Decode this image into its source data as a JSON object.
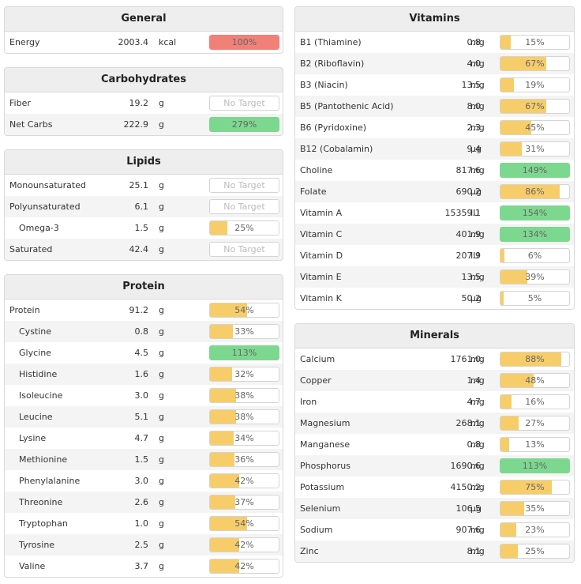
{
  "colors": {
    "full": "#7dd88f",
    "partial": "#f7cd6a",
    "over": "#f08078",
    "empty": "#ffffff"
  },
  "general": {
    "title": "General",
    "rows": [
      {
        "name": "Energy",
        "value": "2003.4",
        "unit": "kcal",
        "pct": "100%",
        "fill": 1.0,
        "status": "over"
      }
    ]
  },
  "carbs": {
    "title": "Carbohydrates",
    "rows": [
      {
        "name": "Fiber",
        "value": "19.2",
        "unit": "g",
        "pct": "No Target",
        "fill": 0,
        "status": "none"
      },
      {
        "name": "Net Carbs",
        "value": "222.9",
        "unit": "g",
        "pct": "279%",
        "fill": 1.0,
        "status": "full"
      }
    ]
  },
  "lipids": {
    "title": "Lipids",
    "rows": [
      {
        "name": "Monounsaturated",
        "value": "25.1",
        "unit": "g",
        "pct": "No Target",
        "fill": 0,
        "status": "none"
      },
      {
        "name": "Polyunsaturated",
        "value": "6.1",
        "unit": "g",
        "pct": "No Target",
        "fill": 0,
        "status": "none"
      },
      {
        "name": "Omega-3",
        "value": "1.5",
        "unit": "g",
        "pct": "25%",
        "fill": 0.25,
        "status": "partial",
        "indent": true
      },
      {
        "name": "Saturated",
        "value": "42.4",
        "unit": "g",
        "pct": "No Target",
        "fill": 0,
        "status": "none"
      }
    ]
  },
  "protein": {
    "title": "Protein",
    "rows": [
      {
        "name": "Protein",
        "value": "91.2",
        "unit": "g",
        "pct": "54%",
        "fill": 0.54,
        "status": "partial"
      },
      {
        "name": "Cystine",
        "value": "0.8",
        "unit": "g",
        "pct": "33%",
        "fill": 0.33,
        "status": "partial",
        "indent": true
      },
      {
        "name": "Glycine",
        "value": "4.5",
        "unit": "g",
        "pct": "113%",
        "fill": 1.0,
        "status": "full",
        "indent": true
      },
      {
        "name": "Histidine",
        "value": "1.6",
        "unit": "g",
        "pct": "32%",
        "fill": 0.32,
        "status": "partial",
        "indent": true
      },
      {
        "name": "Isoleucine",
        "value": "3.0",
        "unit": "g",
        "pct": "38%",
        "fill": 0.38,
        "status": "partial",
        "indent": true
      },
      {
        "name": "Leucine",
        "value": "5.1",
        "unit": "g",
        "pct": "38%",
        "fill": 0.38,
        "status": "partial",
        "indent": true
      },
      {
        "name": "Lysine",
        "value": "4.7",
        "unit": "g",
        "pct": "34%",
        "fill": 0.34,
        "status": "partial",
        "indent": true
      },
      {
        "name": "Methionine",
        "value": "1.5",
        "unit": "g",
        "pct": "36%",
        "fill": 0.36,
        "status": "partial",
        "indent": true
      },
      {
        "name": "Phenylalanine",
        "value": "3.0",
        "unit": "g",
        "pct": "42%",
        "fill": 0.42,
        "status": "partial",
        "indent": true
      },
      {
        "name": "Threonine",
        "value": "2.6",
        "unit": "g",
        "pct": "37%",
        "fill": 0.37,
        "status": "partial",
        "indent": true
      },
      {
        "name": "Tryptophan",
        "value": "1.0",
        "unit": "g",
        "pct": "54%",
        "fill": 0.54,
        "status": "partial",
        "indent": true
      },
      {
        "name": "Tyrosine",
        "value": "2.5",
        "unit": "g",
        "pct": "42%",
        "fill": 0.42,
        "status": "partial",
        "indent": true
      },
      {
        "name": "Valine",
        "value": "3.7",
        "unit": "g",
        "pct": "42%",
        "fill": 0.42,
        "status": "partial",
        "indent": true
      }
    ]
  },
  "vitamins": {
    "title": "Vitamins",
    "rows": [
      {
        "name": "B1 (Thiamine)",
        "value": "0.8",
        "unit": "mg",
        "pct": "15%",
        "fill": 0.15,
        "status": "partial"
      },
      {
        "name": "B2 (Riboflavin)",
        "value": "4.0",
        "unit": "mg",
        "pct": "67%",
        "fill": 0.67,
        "status": "partial"
      },
      {
        "name": "B3 (Niacin)",
        "value": "13.5",
        "unit": "mg",
        "pct": "19%",
        "fill": 0.19,
        "status": "partial"
      },
      {
        "name": "B5 (Pantothenic Acid)",
        "value": "8.0",
        "unit": "mg",
        "pct": "67%",
        "fill": 0.67,
        "status": "partial"
      },
      {
        "name": "B6 (Pyridoxine)",
        "value": "2.3",
        "unit": "mg",
        "pct": "45%",
        "fill": 0.45,
        "status": "partial"
      },
      {
        "name": "B12 (Cobalamin)",
        "value": "9.4",
        "unit": "µg",
        "pct": "31%",
        "fill": 0.31,
        "status": "partial"
      },
      {
        "name": "Choline",
        "value": "817.6",
        "unit": "mg",
        "pct": "149%",
        "fill": 1.0,
        "status": "full"
      },
      {
        "name": "Folate",
        "value": "690.2",
        "unit": "µg",
        "pct": "86%",
        "fill": 0.86,
        "status": "partial"
      },
      {
        "name": "Vitamin A",
        "value": "15359.1",
        "unit": "IU",
        "pct": "154%",
        "fill": 1.0,
        "status": "full"
      },
      {
        "name": "Vitamin C",
        "value": "401.9",
        "unit": "mg",
        "pct": "134%",
        "fill": 1.0,
        "status": "full"
      },
      {
        "name": "Vitamin D",
        "value": "207.9",
        "unit": "IU",
        "pct": "6%",
        "fill": 0.06,
        "status": "partial"
      },
      {
        "name": "Vitamin E",
        "value": "13.5",
        "unit": "mg",
        "pct": "39%",
        "fill": 0.39,
        "status": "partial"
      },
      {
        "name": "Vitamin K",
        "value": "50.2",
        "unit": "µg",
        "pct": "5%",
        "fill": 0.05,
        "status": "partial"
      }
    ]
  },
  "minerals": {
    "title": "Minerals",
    "rows": [
      {
        "name": "Calcium",
        "value": "1761.0",
        "unit": "mg",
        "pct": "88%",
        "fill": 0.88,
        "status": "partial"
      },
      {
        "name": "Copper",
        "value": "1.4",
        "unit": "mg",
        "pct": "48%",
        "fill": 0.48,
        "status": "partial"
      },
      {
        "name": "Iron",
        "value": "4.7",
        "unit": "mg",
        "pct": "16%",
        "fill": 0.16,
        "status": "partial"
      },
      {
        "name": "Magnesium",
        "value": "268.1",
        "unit": "mg",
        "pct": "27%",
        "fill": 0.27,
        "status": "partial"
      },
      {
        "name": "Manganese",
        "value": "0.8",
        "unit": "mg",
        "pct": "13%",
        "fill": 0.13,
        "status": "partial"
      },
      {
        "name": "Phosphorus",
        "value": "1690.6",
        "unit": "mg",
        "pct": "113%",
        "fill": 1.0,
        "status": "full"
      },
      {
        "name": "Potassium",
        "value": "4150.2",
        "unit": "mg",
        "pct": "75%",
        "fill": 0.75,
        "status": "partial"
      },
      {
        "name": "Selenium",
        "value": "106.5",
        "unit": "µg",
        "pct": "35%",
        "fill": 0.35,
        "status": "partial"
      },
      {
        "name": "Sodium",
        "value": "907.6",
        "unit": "mg",
        "pct": "23%",
        "fill": 0.23,
        "status": "partial"
      },
      {
        "name": "Zinc",
        "value": "8.1",
        "unit": "mg",
        "pct": "25%",
        "fill": 0.25,
        "status": "partial"
      }
    ]
  }
}
